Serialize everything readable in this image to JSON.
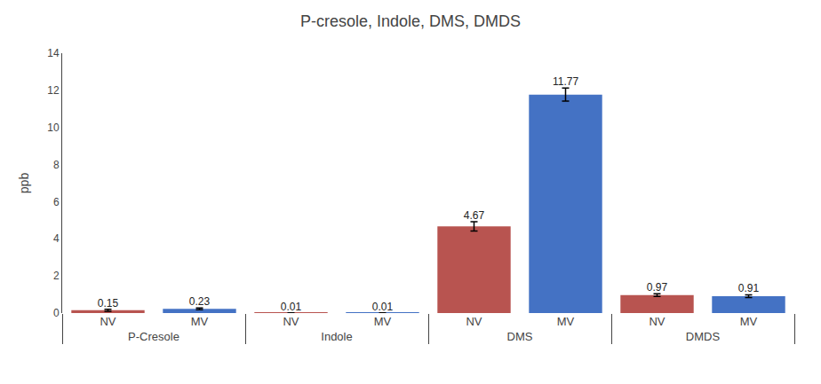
{
  "chart_data": {
    "type": "bar",
    "title": "P-cresole, Indole, DMS, DMDS",
    "ylabel": "ppb",
    "categories": [
      "P-Cresole",
      "Indole",
      "DMS",
      "DMDS"
    ],
    "series": [
      {
        "name": "NV",
        "color": "#B85450",
        "values": [
          0.15,
          0.01,
          4.67,
          0.97
        ],
        "errors": [
          0.05,
          0.005,
          0.25,
          0.07
        ]
      },
      {
        "name": "MV",
        "color": "#4472C4",
        "values": [
          0.23,
          0.01,
          11.77,
          0.91
        ],
        "errors": [
          0.05,
          0.005,
          0.35,
          0.07
        ]
      }
    ],
    "ylim": [
      0,
      14
    ],
    "yticks": [
      0,
      2,
      4,
      6,
      8,
      10,
      12,
      14
    ],
    "grid": false,
    "data_labels": true
  }
}
